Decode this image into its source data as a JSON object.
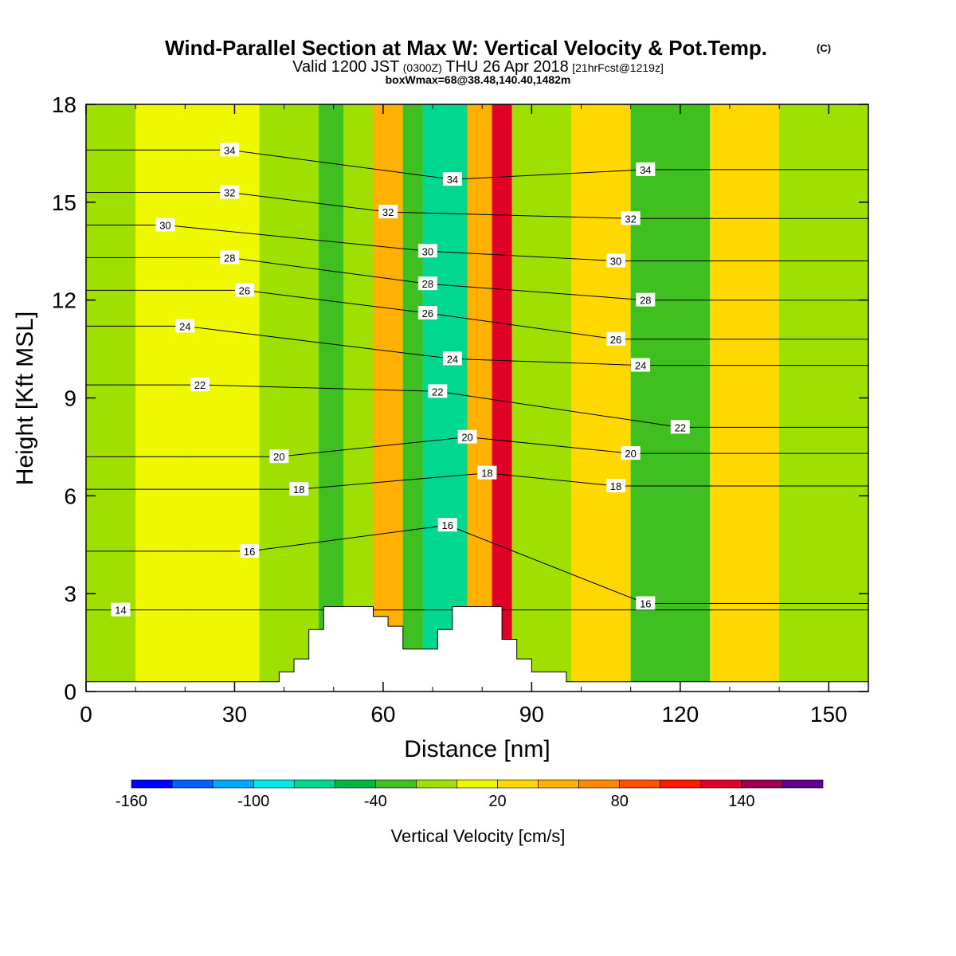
{
  "chart_data": {
    "type": "heatmap",
    "title": "Wind-Parallel Section at Max W: Vertical Velocity & Pot.Temp.",
    "copyright_mark": "(C)",
    "subtitle": {
      "valid_prefix": "Valid 1200 JST",
      "utc": "(0300Z)",
      "date": "THU 26 Apr 2018",
      "forecast": "[21hrFcst@1219z]"
    },
    "box_info": "boxWmax=68@38.48,140.40,1482m",
    "xlabel": "Distance [nm]",
    "ylabel": "Height [Kft MSL]",
    "xlim": [
      0,
      158
    ],
    "ylim": [
      0,
      18
    ],
    "x_ticks": [
      0,
      30,
      60,
      90,
      120,
      150
    ],
    "y_ticks": [
      0,
      3,
      6,
      9,
      12,
      15,
      18
    ],
    "colorbar": {
      "label": "Vertical Velocity [cm/s]",
      "tick_labels": [
        -160,
        -100,
        -40,
        20,
        80,
        140
      ],
      "levels": [
        -160,
        -140,
        -120,
        -100,
        -80,
        -60,
        -40,
        -20,
        0,
        20,
        40,
        60,
        80,
        100,
        120,
        140,
        160,
        180
      ],
      "colors": [
        "#0000ff",
        "#0060ff",
        "#00a8ff",
        "#00e8e8",
        "#00d890",
        "#00b840",
        "#40c020",
        "#a0e000",
        "#f0f800",
        "#ffd800",
        "#ffb000",
        "#ff8800",
        "#ff5000",
        "#ff1800",
        "#e00028",
        "#a00050",
        "#600090"
      ]
    },
    "velocity_columns": [
      {
        "x": [
          0,
          10
        ],
        "value": -10
      },
      {
        "x": [
          10,
          20
        ],
        "value": 10
      },
      {
        "x": [
          20,
          35
        ],
        "value": 10
      },
      {
        "x": [
          35,
          47
        ],
        "value": -20
      },
      {
        "x": [
          47,
          52
        ],
        "value": -40
      },
      {
        "x": [
          52,
          58
        ],
        "value": -10
      },
      {
        "x": [
          58,
          64
        ],
        "value": 40
      },
      {
        "x": [
          64,
          68
        ],
        "value": -30
      },
      {
        "x": [
          68,
          77
        ],
        "value": -80
      },
      {
        "x": [
          77,
          82
        ],
        "value": 40
      },
      {
        "x": [
          82,
          86
        ],
        "value": 120
      },
      {
        "x": [
          86,
          92
        ],
        "value": -20
      },
      {
        "x": [
          92,
          98
        ],
        "value": -10
      },
      {
        "x": [
          98,
          110
        ],
        "value": 20
      },
      {
        "x": [
          110,
          126
        ],
        "value": -30
      },
      {
        "x": [
          126,
          140
        ],
        "value": 20
      },
      {
        "x": [
          140,
          158
        ],
        "value": -20
      }
    ],
    "theta_contour_labels": [
      {
        "value": 34,
        "x": 29,
        "y": 16.6
      },
      {
        "value": 32,
        "x": 29,
        "y": 15.3
      },
      {
        "value": 30,
        "x": 16,
        "y": 14.3
      },
      {
        "value": 28,
        "x": 29,
        "y": 13.3
      },
      {
        "value": 26,
        "x": 32,
        "y": 12.3
      },
      {
        "value": 24,
        "x": 20,
        "y": 11.2
      },
      {
        "value": 22,
        "x": 23,
        "y": 9.4
      },
      {
        "value": 20,
        "x": 39,
        "y": 7.2
      },
      {
        "value": 18,
        "x": 43,
        "y": 6.2
      },
      {
        "value": 16,
        "x": 33,
        "y": 4.3
      },
      {
        "value": 14,
        "x": 7,
        "y": 2.5
      },
      {
        "value": 34,
        "x": 74,
        "y": 15.7
      },
      {
        "value": 32,
        "x": 61,
        "y": 14.7
      },
      {
        "value": 30,
        "x": 69,
        "y": 13.5
      },
      {
        "value": 28,
        "x": 69,
        "y": 12.5
      },
      {
        "value": 26,
        "x": 69,
        "y": 11.6
      },
      {
        "value": 24,
        "x": 74,
        "y": 10.2
      },
      {
        "value": 22,
        "x": 71,
        "y": 9.2
      },
      {
        "value": 20,
        "x": 77,
        "y": 7.8
      },
      {
        "value": 18,
        "x": 81,
        "y": 6.7
      },
      {
        "value": 16,
        "x": 73,
        "y": 5.1
      },
      {
        "value": 34,
        "x": 113,
        "y": 16.0
      },
      {
        "value": 32,
        "x": 110,
        "y": 14.5
      },
      {
        "value": 30,
        "x": 107,
        "y": 13.2
      },
      {
        "value": 28,
        "x": 113,
        "y": 12.0
      },
      {
        "value": 26,
        "x": 107,
        "y": 10.8
      },
      {
        "value": 24,
        "x": 112,
        "y": 10.0
      },
      {
        "value": 22,
        "x": 120,
        "y": 8.1
      },
      {
        "value": 20,
        "x": 110,
        "y": 7.3
      },
      {
        "value": 18,
        "x": 107,
        "y": 6.3
      },
      {
        "value": 16,
        "x": 113,
        "y": 2.7
      }
    ],
    "terrain": [
      [
        0,
        0.3
      ],
      [
        39,
        0.3
      ],
      [
        39,
        0.6
      ],
      [
        42,
        0.6
      ],
      [
        42,
        1.0
      ],
      [
        45,
        1.0
      ],
      [
        45,
        1.9
      ],
      [
        48,
        1.9
      ],
      [
        48,
        2.6
      ],
      [
        58,
        2.6
      ],
      [
        58,
        2.3
      ],
      [
        61,
        2.3
      ],
      [
        61,
        2.0
      ],
      [
        64,
        2.0
      ],
      [
        64,
        1.3
      ],
      [
        71,
        1.3
      ],
      [
        71,
        1.9
      ],
      [
        74,
        1.9
      ],
      [
        74,
        2.6
      ],
      [
        84,
        2.6
      ],
      [
        84,
        1.6
      ],
      [
        87,
        1.6
      ],
      [
        87,
        1.0
      ],
      [
        90,
        1.0
      ],
      [
        90,
        0.6
      ],
      [
        97,
        0.6
      ],
      [
        97,
        0.3
      ],
      [
        158,
        0.3
      ]
    ]
  }
}
